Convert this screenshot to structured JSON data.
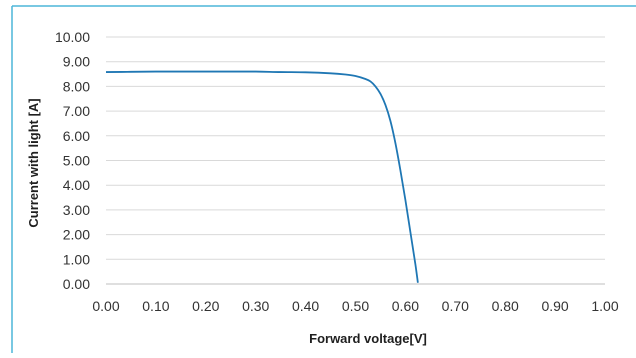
{
  "colors": {
    "frame": "#4db6d8",
    "grid": "#d9d9d9",
    "series": "#1f77b4"
  },
  "chart_data": {
    "type": "line",
    "title": "",
    "xlabel": "Forward voltage[V]",
    "ylabel": "Current with light [A]",
    "xlim": [
      0,
      1
    ],
    "ylim": [
      0,
      10
    ],
    "x_ticks": [
      "0.00",
      "0.10",
      "0.20",
      "0.30",
      "0.40",
      "0.50",
      "0.60",
      "0.70",
      "0.80",
      "0.90",
      "1.00"
    ],
    "y_ticks": [
      "0.00",
      "1.00",
      "2.00",
      "3.00",
      "4.00",
      "5.00",
      "6.00",
      "7.00",
      "8.00",
      "9.00",
      "10.00"
    ],
    "grid": true,
    "legend": "none",
    "series": [
      {
        "x": [
          0.0,
          0.05,
          0.1,
          0.15,
          0.2,
          0.25,
          0.3,
          0.35,
          0.4,
          0.45,
          0.48,
          0.5,
          0.52,
          0.53,
          0.54,
          0.55,
          0.56,
          0.57,
          0.58,
          0.59,
          0.6,
          0.61,
          0.62,
          0.625
        ],
        "y": [
          8.58,
          8.59,
          8.6,
          8.6,
          8.6,
          8.6,
          8.6,
          8.58,
          8.57,
          8.53,
          8.48,
          8.42,
          8.3,
          8.2,
          8.0,
          7.7,
          7.25,
          6.6,
          5.7,
          4.6,
          3.4,
          2.1,
          0.8,
          0.05
        ]
      }
    ]
  }
}
